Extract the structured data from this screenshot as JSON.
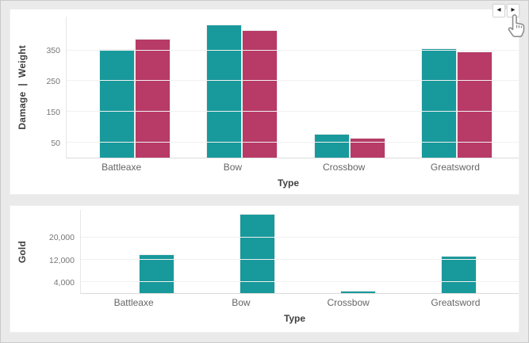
{
  "window": {
    "background": "#eaeaea",
    "card_background": "#ffffff"
  },
  "pagination": {
    "prev": "◀",
    "next": "▶"
  },
  "colors": {
    "teal": "#18999b",
    "crimson": "#b73a67"
  },
  "chart_data": [
    {
      "type": "bar",
      "title": "",
      "categories": [
        "Battleaxe",
        "Bow",
        "Crossbow",
        "Greatsword"
      ],
      "series": [
        {
          "name": "Damage",
          "color_key": "teal",
          "values": [
            352,
            432,
            74,
            353
          ]
        },
        {
          "name": "Weight",
          "color_key": "crimson",
          "values": [
            385,
            414,
            62,
            345
          ]
        }
      ],
      "xlabel": "Type",
      "ylabel": "Damage  |  Weight",
      "yticks": [
        50,
        150,
        250,
        350
      ],
      "ylim": [
        0,
        460
      ],
      "grid": true,
      "legend": "none"
    },
    {
      "type": "bar",
      "title": "",
      "categories": [
        "Battleaxe",
        "Bow",
        "Crossbow",
        "Greatsword"
      ],
      "series": [
        {
          "name": "Gold",
          "color_key": "teal",
          "values": [
            13600,
            28300,
            600,
            13200
          ]
        }
      ],
      "xlabel": "Type",
      "ylabel": "Gold",
      "yticks": [
        4000,
        12000,
        20000
      ],
      "ylim": [
        0,
        30000
      ],
      "grid": true,
      "legend": "none"
    }
  ]
}
